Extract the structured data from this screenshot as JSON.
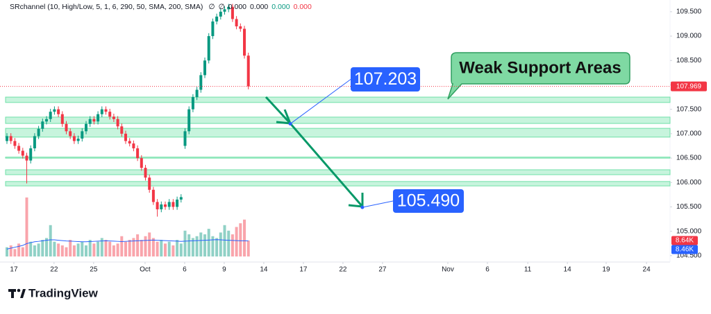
{
  "header": {
    "indicator": "SRchannel (10, High/Low, 5, 1, 6, 290, 50, SMA, 200, SMA)",
    "values": [
      "∅",
      "∅",
      "0.000",
      "0.000",
      "0.000",
      "0.000"
    ],
    "value_colors": [
      "#131722",
      "#131722",
      "#131722",
      "#131722",
      "#089981",
      "#f23645"
    ]
  },
  "chart_data": {
    "type": "candlestick",
    "xlim": [
      0,
      168
    ],
    "ylim": [
      104.37,
      109.74
    ],
    "xticks": [
      {
        "value": 1.75,
        "label": "17"
      },
      {
        "value": 11.9,
        "label": "22"
      },
      {
        "value": 21.9,
        "label": "25"
      },
      {
        "value": 34.9,
        "label": "Oct"
      },
      {
        "value": 44.9,
        "label": "6"
      },
      {
        "value": 54.9,
        "label": "9"
      },
      {
        "value": 64.9,
        "label": "14"
      },
      {
        "value": 74.9,
        "label": "17"
      },
      {
        "value": 84.9,
        "label": "22"
      },
      {
        "value": 94.9,
        "label": "27"
      },
      {
        "value": 111.4,
        "label": "Nov"
      },
      {
        "value": 121.4,
        "label": "6"
      },
      {
        "value": 131.6,
        "label": "11"
      },
      {
        "value": 141.6,
        "label": "14"
      },
      {
        "value": 151.4,
        "label": "19"
      },
      {
        "value": 161.6,
        "label": "24"
      }
    ],
    "yticks": [
      {
        "value": 104.5,
        "label": "104.500"
      },
      {
        "value": 105,
        "label": "105.000"
      },
      {
        "value": 105.5,
        "label": "105.500"
      },
      {
        "value": 106,
        "label": "106.000"
      },
      {
        "value": 106.5,
        "label": "106.500"
      },
      {
        "value": 107,
        "label": "107.000"
      },
      {
        "value": 107.5,
        "label": "107.500"
      },
      {
        "value": 108,
        "label": "108.000"
      },
      {
        "value": 108.5,
        "label": "108.500"
      },
      {
        "value": 109,
        "label": "109.000"
      },
      {
        "value": 109.5,
        "label": "109.500"
      }
    ],
    "up_color": "#089981",
    "down_color": "#f23645",
    "x": [
      0,
      1,
      2,
      3,
      4,
      5,
      6,
      7,
      8,
      9,
      10,
      11,
      12,
      13,
      14,
      15,
      16,
      17,
      18,
      19,
      20,
      21,
      22,
      23,
      24,
      25,
      26,
      27,
      28,
      29,
      30,
      31,
      32,
      33,
      34,
      35,
      36,
      37,
      38,
      39,
      40,
      41,
      42,
      43,
      44,
      45,
      46,
      47,
      48,
      49,
      50,
      51,
      52,
      53,
      54,
      55,
      56,
      57,
      58,
      59,
      60,
      61
    ],
    "open": [
      106.85,
      106.95,
      106.85,
      106.75,
      106.65,
      106.55,
      106.45,
      106.7,
      106.95,
      107.1,
      107.25,
      107.3,
      107.45,
      107.5,
      107.4,
      107.2,
      107.05,
      106.95,
      106.85,
      106.9,
      107.05,
      107.2,
      107.3,
      107.25,
      107.4,
      107.5,
      107.45,
      107.35,
      107.3,
      107.15,
      107.0,
      106.85,
      106.8,
      106.7,
      106.5,
      106.3,
      106.1,
      105.85,
      105.6,
      105.45,
      105.55,
      105.5,
      105.6,
      105.5,
      105.65,
      106.75,
      107.05,
      107.5,
      107.75,
      107.9,
      108.2,
      108.5,
      109.0,
      109.3,
      109.4,
      109.5,
      109.55,
      109.6,
      109.35,
      109.2,
      109.15,
      108.6
    ],
    "high": [
      107.01,
      107.01,
      106.91,
      106.81,
      106.71,
      106.61,
      106.76,
      107.01,
      107.16,
      107.31,
      107.36,
      107.51,
      107.56,
      107.56,
      107.46,
      107.26,
      107.11,
      107.01,
      106.96,
      107.11,
      107.26,
      107.36,
      107.36,
      107.46,
      107.56,
      107.56,
      107.51,
      107.41,
      107.36,
      107.21,
      107.06,
      106.91,
      106.86,
      106.76,
      106.56,
      106.36,
      106.16,
      105.91,
      105.66,
      105.61,
      105.61,
      105.66,
      105.66,
      105.71,
      105.76,
      107.11,
      107.56,
      107.81,
      107.96,
      108.26,
      108.56,
      109.06,
      109.36,
      109.46,
      109.56,
      109.61,
      109.66,
      109.66,
      109.41,
      109.26,
      109.21,
      108.66
    ],
    "low": [
      106.79,
      106.79,
      106.69,
      106.59,
      106.49,
      105.98,
      106.39,
      106.64,
      106.89,
      107.04,
      107.19,
      107.24,
      107.39,
      107.34,
      107.14,
      106.99,
      106.89,
      106.79,
      106.79,
      106.84,
      106.99,
      107.14,
      107.19,
      107.19,
      107.34,
      107.39,
      107.29,
      107.24,
      107.09,
      106.94,
      106.79,
      106.74,
      106.64,
      106.44,
      106.24,
      106.04,
      105.79,
      105.54,
      105.3,
      105.39,
      105.44,
      105.44,
      105.44,
      105.44,
      105.59,
      106.69,
      106.99,
      107.44,
      107.69,
      107.84,
      108.14,
      108.44,
      108.94,
      109.24,
      109.34,
      109.44,
      109.49,
      109.29,
      109.14,
      109.09,
      108.54,
      107.909
    ],
    "close": [
      106.95,
      106.85,
      106.75,
      106.65,
      106.55,
      106.45,
      106.7,
      106.95,
      107.1,
      107.25,
      107.3,
      107.45,
      107.5,
      107.4,
      107.2,
      107.05,
      106.95,
      106.85,
      106.9,
      107.05,
      107.2,
      107.3,
      107.25,
      107.4,
      107.5,
      107.45,
      107.35,
      107.3,
      107.15,
      107.0,
      106.85,
      106.8,
      106.7,
      106.5,
      106.3,
      106.1,
      105.85,
      105.6,
      105.45,
      105.55,
      105.5,
      105.6,
      105.5,
      105.65,
      105.7,
      107.05,
      107.5,
      107.75,
      107.9,
      108.2,
      108.5,
      109.0,
      109.3,
      109.4,
      109.5,
      109.55,
      109.6,
      109.35,
      109.2,
      109.15,
      108.6,
      107.969
    ],
    "volume": [
      5,
      6,
      4,
      7,
      5,
      32,
      8,
      6,
      7,
      9,
      10,
      17,
      8,
      7,
      6,
      5,
      9,
      6,
      7,
      8,
      6,
      9,
      7,
      8,
      10,
      9,
      8,
      6,
      7,
      11,
      8,
      9,
      10,
      12,
      9,
      11,
      13,
      10,
      8,
      9,
      7,
      8,
      6,
      9,
      7,
      14,
      12,
      10,
      11,
      13,
      12,
      15,
      11,
      10,
      13,
      17,
      14,
      12,
      16,
      18,
      20,
      8.64
    ],
    "volume_ma": [
      4,
      4.5,
      5,
      5.5,
      6,
      7,
      7.5,
      8,
      8.2,
      8.5,
      8.8,
      9,
      9,
      8.8,
      8.6,
      8.4,
      8.3,
      8.2,
      8.1,
      8,
      8,
      8.1,
      8.2,
      8.3,
      8.4,
      8.5,
      8.4,
      8.3,
      8.2,
      8.1,
      8.2,
      8.3,
      8.4,
      8.5,
      8.6,
      8.7,
      8.8,
      8.9,
      8.8,
      8.7,
      8.6,
      8.5,
      8.4,
      8.3,
      8.2,
      8.3,
      8.4,
      8.5,
      8.6,
      8.7,
      8.8,
      8.9,
      9,
      9.1,
      9,
      8.9,
      8.8,
      8.7,
      8.6,
      8.5,
      8.5,
      8.46
    ],
    "volume_label": {
      "value": 8.64,
      "label": "8.64K"
    },
    "volume_ma_label": {
      "value": 8.46,
      "label": "8.46K"
    },
    "last_price": 107.969,
    "zones": [
      [
        107.64,
        107.75
      ],
      [
        107.21,
        107.34
      ],
      [
        106.93,
        107.11
      ],
      [
        106.5,
        106.52
      ],
      [
        106.16,
        106.26
      ],
      [
        105.93,
        106.02
      ]
    ],
    "annotations": [
      {
        "value": 107.203,
        "label": "107.203",
        "x": 71.6
      },
      {
        "value": 105.49,
        "label": "105.490",
        "x": 89.8
      }
    ],
    "callout": "Weak Support Areas"
  },
  "footer": {
    "brand": "TradingView"
  }
}
